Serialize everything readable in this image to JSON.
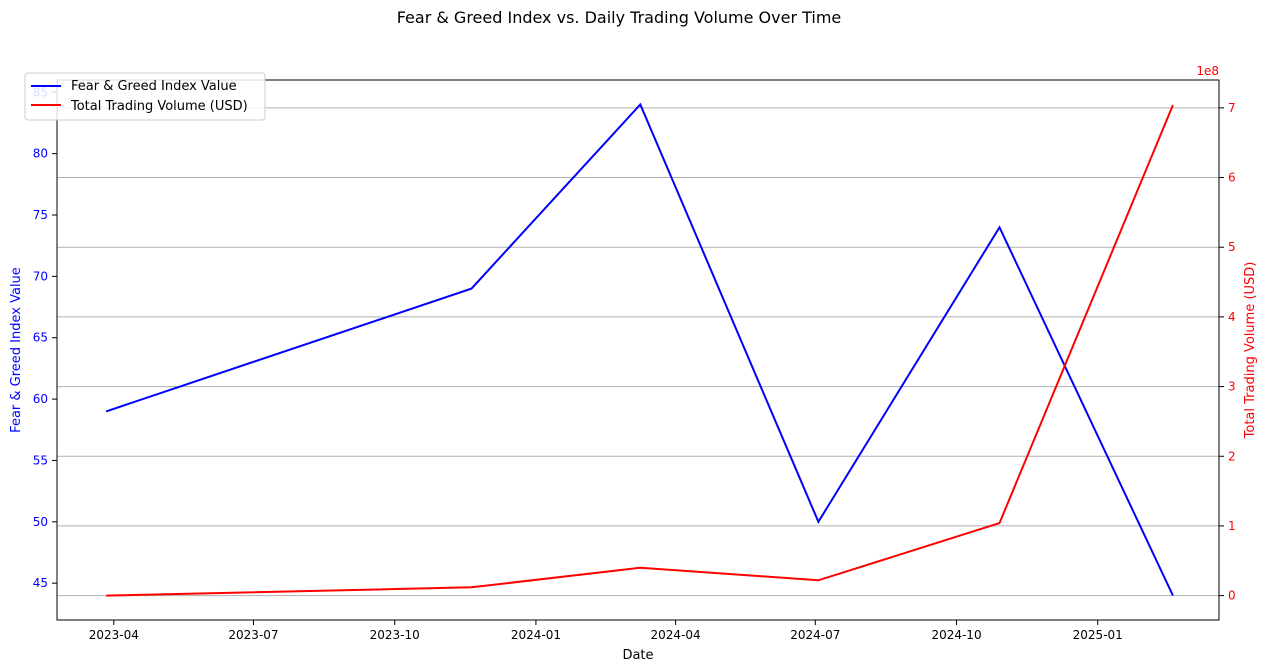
{
  "chart_data": {
    "type": "line",
    "title": "Fear & Greed Index vs. Daily Trading Volume Over Time",
    "xlabel": "Date",
    "ylabel_left": "Fear & Greed Index Value",
    "ylabel_right": "Total Trading Volume (USD)",
    "right_axis_multiplier": "1e8",
    "x": [
      "2023-03-27",
      "2023-11-20",
      "2024-03-09",
      "2024-07-03",
      "2024-10-29",
      "2025-02-19"
    ],
    "x_ticks": [
      "2023-04",
      "2023-07",
      "2023-10",
      "2024-01",
      "2024-04",
      "2024-07",
      "2024-10",
      "2025-01"
    ],
    "y_left_ticks": [
      45,
      50,
      55,
      60,
      65,
      70,
      75,
      80,
      85
    ],
    "y_right_ticks": [
      0,
      1,
      2,
      3,
      4,
      5,
      6,
      7
    ],
    "xlim": [
      "2023-02-23",
      "2025-03-21"
    ],
    "ylim_left": [
      42,
      86
    ],
    "ylim_right": [
      -0.35,
      7.4
    ],
    "series": [
      {
        "name": "Fear & Greed Index Value",
        "axis": "left",
        "color": "#0000ff",
        "values": [
          59,
          69,
          84,
          50,
          74,
          44
        ]
      },
      {
        "name": "Total Trading Volume (USD)",
        "axis": "right",
        "color": "#ff0000",
        "values": [
          0.0,
          0.12,
          0.4,
          0.22,
          1.04,
          7.04
        ]
      }
    ],
    "grid": "horizontal (right axis)",
    "legend_position": "top-left"
  }
}
